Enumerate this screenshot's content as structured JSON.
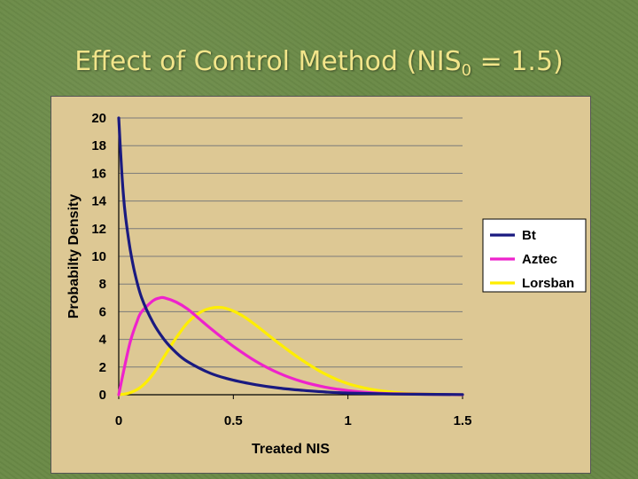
{
  "slide": {
    "title_main": "Effect of Control Method (NIS",
    "title_sub": "0",
    "title_tail": " = 1.5)"
  },
  "chart_data": {
    "type": "line",
    "xlabel": "Treated NIS",
    "ylabel": "Probabilty Density",
    "xlim": [
      0,
      1.5
    ],
    "ylim": [
      0,
      20
    ],
    "x_ticks": [
      0,
      0.5,
      1,
      1.5
    ],
    "x_tick_labels": [
      "0",
      "0.5",
      "1",
      "1.5"
    ],
    "y_ticks": [
      0,
      2,
      4,
      6,
      8,
      10,
      12,
      14,
      16,
      18,
      20
    ],
    "y_tick_labels": [
      "0",
      "2",
      "4",
      "6",
      "8",
      "10",
      "12",
      "14",
      "16",
      "18",
      "20"
    ],
    "grid": "horizontal",
    "legend_position": "right",
    "series": [
      {
        "name": "Bt",
        "color": "#1a1a80",
        "x": [
          0.0,
          0.01,
          0.02,
          0.03,
          0.05,
          0.07,
          0.1,
          0.15,
          0.2,
          0.25,
          0.3,
          0.4,
          0.5,
          0.6,
          0.7,
          0.8,
          0.9,
          1.0,
          1.2,
          1.5
        ],
        "y": [
          20.0,
          17.0,
          14.5,
          12.8,
          10.5,
          8.8,
          7.0,
          5.2,
          3.95,
          3.05,
          2.4,
          1.55,
          1.05,
          0.72,
          0.48,
          0.32,
          0.2,
          0.12,
          0.05,
          0.01
        ]
      },
      {
        "name": "Aztec",
        "color": "#ee22cc",
        "x": [
          0.0,
          0.02,
          0.05,
          0.08,
          0.1,
          0.15,
          0.18,
          0.2,
          0.25,
          0.3,
          0.35,
          0.4,
          0.5,
          0.6,
          0.7,
          0.8,
          0.9,
          1.0,
          1.1,
          1.2,
          1.5
        ],
        "y": [
          0.0,
          1.6,
          3.8,
          5.3,
          6.0,
          6.8,
          7.0,
          7.0,
          6.7,
          6.2,
          5.5,
          4.8,
          3.5,
          2.4,
          1.55,
          0.95,
          0.55,
          0.3,
          0.15,
          0.07,
          0.0
        ]
      },
      {
        "name": "Lorsban",
        "color": "#ffee00",
        "x": [
          0.0,
          0.05,
          0.1,
          0.15,
          0.2,
          0.25,
          0.3,
          0.35,
          0.4,
          0.45,
          0.5,
          0.55,
          0.6,
          0.7,
          0.8,
          0.9,
          1.0,
          1.1,
          1.2,
          1.3,
          1.5
        ],
        "y": [
          0.0,
          0.15,
          0.6,
          1.5,
          2.8,
          4.1,
          5.2,
          5.9,
          6.25,
          6.3,
          6.05,
          5.6,
          5.0,
          3.7,
          2.5,
          1.5,
          0.8,
          0.4,
          0.18,
          0.07,
          0.0
        ]
      }
    ]
  }
}
